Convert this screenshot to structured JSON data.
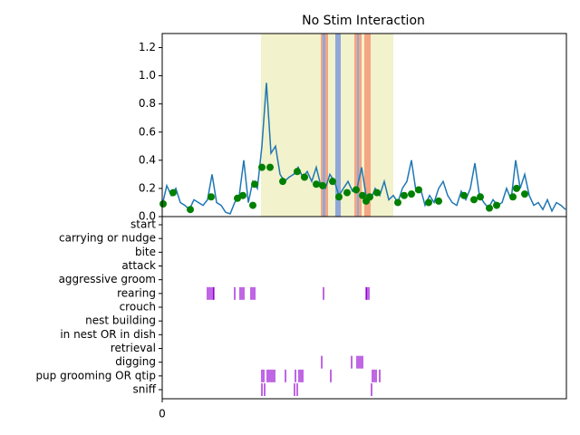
{
  "chart_data": [
    {
      "type": "line",
      "title": "No Stim Interaction",
      "x": [
        0,
        5,
        10,
        15,
        20,
        25,
        30,
        35,
        40,
        45,
        50,
        55,
        60,
        65,
        70,
        75,
        80,
        85,
        90,
        95,
        100,
        105,
        110,
        115,
        120,
        125,
        130,
        135,
        140,
        145,
        150,
        155,
        160,
        165,
        170,
        175,
        180,
        185,
        190,
        195,
        200,
        205,
        210,
        215,
        220,
        225,
        230,
        235,
        240,
        245,
        250,
        255,
        260,
        265,
        270,
        275,
        280,
        285,
        290,
        295,
        300,
        305,
        310,
        315,
        320,
        325,
        330,
        335,
        340,
        345,
        350,
        355,
        360,
        365,
        370,
        375,
        380,
        385,
        390,
        395,
        400,
        405,
        410,
        415,
        420,
        425,
        430,
        435,
        440,
        445
      ],
      "series": [
        {
          "color": "#1f77b4",
          "values": [
            0.08,
            0.22,
            0.15,
            0.2,
            0.1,
            0.08,
            0.05,
            0.12,
            0.1,
            0.08,
            0.12,
            0.3,
            0.1,
            0.08,
            0.03,
            0.02,
            0.1,
            0.15,
            0.4,
            0.1,
            0.25,
            0.2,
            0.5,
            0.95,
            0.45,
            0.5,
            0.3,
            0.25,
            0.28,
            0.3,
            0.35,
            0.28,
            0.32,
            0.25,
            0.35,
            0.22,
            0.2,
            0.3,
            0.25,
            0.15,
            0.2,
            0.25,
            0.18,
            0.2,
            0.35,
            0.15,
            0.12,
            0.2,
            0.15,
            0.25,
            0.12,
            0.15,
            0.1,
            0.2,
            0.25,
            0.4,
            0.18,
            0.2,
            0.08,
            0.15,
            0.1,
            0.2,
            0.25,
            0.15,
            0.1,
            0.08,
            0.18,
            0.12,
            0.2,
            0.38,
            0.15,
            0.1,
            0.06,
            0.12,
            0.08,
            0.1,
            0.2,
            0.12,
            0.4,
            0.2,
            0.3,
            0.15,
            0.08,
            0.1,
            0.05,
            0.12,
            0.04,
            0.1,
            0.08,
            0.05
          ]
        }
      ],
      "markers": {
        "color": "green",
        "x": [
          1,
          12,
          31,
          54,
          83,
          89,
          100,
          102,
          110,
          119,
          133,
          149,
          157,
          170,
          177,
          188,
          195,
          204,
          214,
          221,
          225,
          229,
          237,
          260,
          267,
          275,
          283,
          294,
          305,
          333,
          344,
          351,
          361,
          369,
          387,
          391,
          400
        ],
        "values": [
          0.09,
          0.17,
          0.05,
          0.14,
          0.13,
          0.15,
          0.08,
          0.23,
          0.35,
          0.35,
          0.25,
          0.32,
          0.28,
          0.23,
          0.22,
          0.25,
          0.14,
          0.17,
          0.19,
          0.15,
          0.11,
          0.14,
          0.17,
          0.1,
          0.15,
          0.16,
          0.19,
          0.1,
          0.11,
          0.15,
          0.12,
          0.14,
          0.06,
          0.08,
          0.14,
          0.2,
          0.16
        ]
      },
      "spans": [
        {
          "start": 109,
          "end": 255,
          "color": "#f2f2cc"
        },
        {
          "start": 175,
          "end": 183,
          "color": "#f4a582"
        },
        {
          "start": 177,
          "end": 180,
          "color": "#8fa8d8"
        },
        {
          "start": 191,
          "end": 197,
          "color": "#8fa8d8"
        },
        {
          "start": 212,
          "end": 220,
          "color": "#f4a582"
        },
        {
          "start": 215,
          "end": 217,
          "color": "#8fa8d8"
        },
        {
          "start": 223,
          "end": 230,
          "color": "#f4a582"
        }
      ],
      "xlim": [
        0,
        446
      ],
      "ylim": [
        0,
        1.3
      ],
      "yticks": [
        {
          "value": 0,
          "label": "0.0"
        },
        0.2,
        0.4,
        0.6,
        0.8,
        {
          "value": 1,
          "label": "1.0"
        },
        1.2
      ]
    },
    {
      "type": "ethogram",
      "color": "#9400d3",
      "categories": [
        "start",
        "carrying or nudge",
        "bite",
        "attack",
        "aggressive groom",
        "rearing",
        "crouch",
        "nest building",
        "in nest OR in dish",
        "retrieval",
        "digging",
        "pup grooming OR qtip",
        "sniff"
      ],
      "events": [
        [],
        [],
        [],
        [],
        [],
        [
          50,
          52,
          54,
          56,
          57,
          80,
          86,
          88,
          90,
          98,
          100,
          102,
          178,
          225,
          226,
          228
        ],
        [],
        [],
        [],
        [],
        [
          176,
          209,
          215,
          217,
          219,
          221
        ],
        [
          110,
          112,
          116,
          118,
          120,
          122,
          124,
          136,
          147,
          151,
          153,
          155,
          186,
          232,
          234,
          236,
          240
        ],
        [
          110,
          113,
          146,
          149,
          231
        ]
      ],
      "xlim": [
        0,
        446
      ],
      "xticks": [
        0
      ]
    }
  ]
}
